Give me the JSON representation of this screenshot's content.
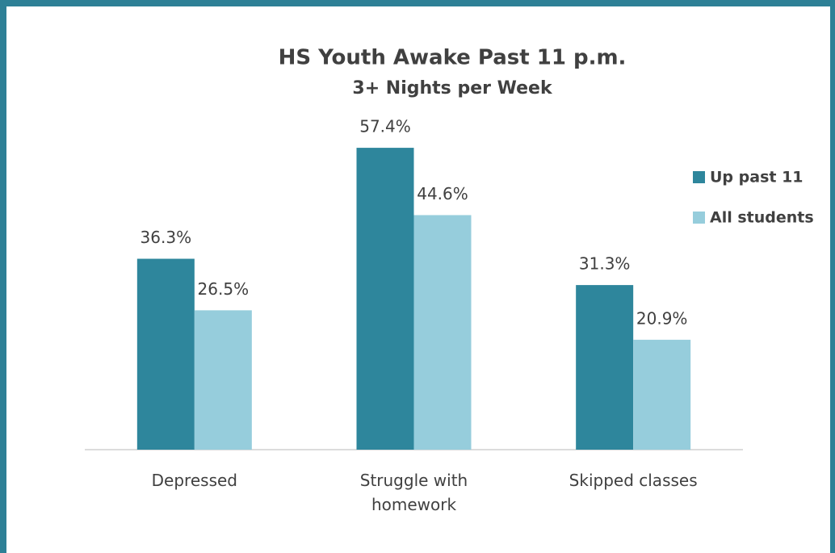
{
  "chart_data": {
    "type": "bar",
    "title": "HS Youth Awake Past 11 p.m.",
    "subtitle": "3+ Nights per Week",
    "categories": [
      "Depressed",
      "Struggle with homework",
      "Skipped classes"
    ],
    "series": [
      {
        "name": "Up past 11",
        "color": "#2e869c",
        "values": [
          36.3,
          57.4,
          31.3
        ],
        "value_labels": [
          "36.3%",
          "57.4%",
          "31.3%"
        ]
      },
      {
        "name": "All students",
        "color": "#96cddc",
        "values": [
          26.5,
          44.6,
          20.9
        ],
        "value_labels": [
          "26.5%",
          "44.6%",
          "20.9%"
        ]
      }
    ],
    "ylim": [
      0,
      70
    ],
    "legend": "right"
  }
}
